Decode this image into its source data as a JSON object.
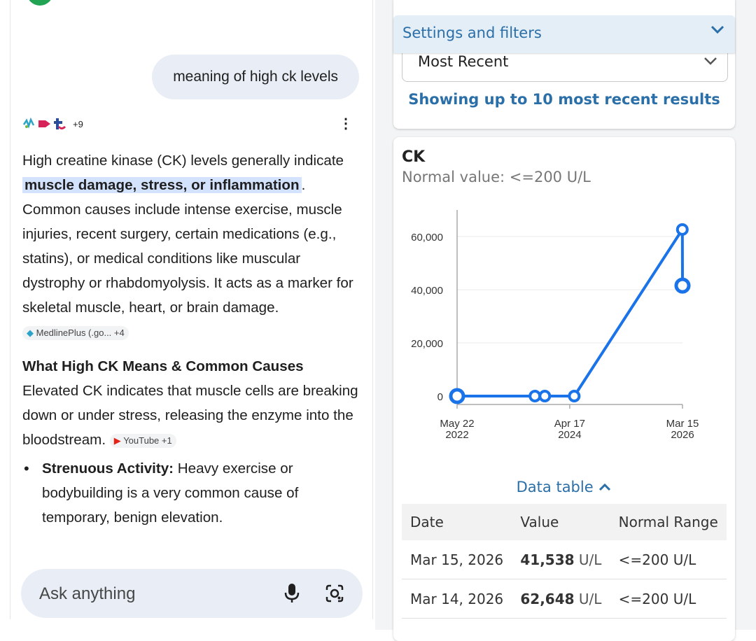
{
  "chat": {
    "query": "meaning of high ck levels",
    "sources_count": "+9",
    "answer_p1_before": "High creatine kinase (CK) levels generally indicate ",
    "answer_p1_highlight": "muscle damage, stress, or inflammation",
    "answer_p1_after": ". Common causes include intense exercise, muscle injuries, recent surgery, certain medications (e.g., statins), or medical conditions like muscular dystrophy or rhabdomyolysis. It acts as a marker for skeletal muscle, heart, or brain damage.",
    "chip1": "MedlinePlus (.go... +4",
    "heading": "What High CK Means & Common Causes",
    "answer_p2": "Elevated CK indicates that muscle cells are breaking down or under stress, releasing the enzyme into the bloodstream.",
    "chip2": "YouTube +1",
    "bullet1_bold": "Strenuous Activity:",
    "bullet1_text": " Heavy exercise or bodybuilding is a very common cause of temporary, benign elevation.",
    "ask_placeholder": "Ask anything",
    "icons": {
      "mic": "microphone-icon",
      "lens": "lens-camera-icon",
      "more": "more-vert-icon"
    }
  },
  "panel": {
    "settings_label": "Settings and filters",
    "sort_value": "Most Recent",
    "showing_text": "Showing up to 10 most recent results",
    "test_name": "CK",
    "normal_value": "Normal value: <=200 U/L",
    "data_table_label": "Data table",
    "table": {
      "headers": [
        "Date",
        "Value",
        "Normal Range"
      ],
      "rows": [
        {
          "date": "Mar 15, 2026",
          "value": "41,538",
          "unit": " U/L",
          "range": "<=200 U/L"
        },
        {
          "date": "Mar 14, 2026",
          "value": "62,648",
          "unit": " U/L",
          "range": "<=200 U/L"
        }
      ]
    },
    "accent_color": "#2b6fa8",
    "line_color": "#1a73e8"
  },
  "chart_data": {
    "type": "line",
    "title": "CK",
    "ylabel": "",
    "xlabel": "",
    "ylim": [
      0,
      70000
    ],
    "yticks": [
      0,
      20000,
      40000,
      60000
    ],
    "ytick_labels": [
      "0",
      "20,000",
      "40,000",
      "60,000"
    ],
    "xticks": [
      {
        "date": "2022-05-22",
        "line1": "May 22",
        "line2": "2022"
      },
      {
        "date": "2024-04-17",
        "line1": "Apr 17",
        "line2": "2024"
      },
      {
        "date": "2026-03-15",
        "line1": "Mar 15",
        "line2": "2026"
      }
    ],
    "series": [
      {
        "points": [
          {
            "x": "2022-05-22",
            "y": 0
          },
          {
            "x": "2023-09-15",
            "y": 0
          },
          {
            "x": "2023-11-15",
            "y": 0
          },
          {
            "x": "2024-05-15",
            "y": 0
          },
          {
            "x": "2026-03-14",
            "y": 62648
          },
          {
            "x": "2026-03-15",
            "y": 41538
          }
        ]
      }
    ],
    "grid": true
  }
}
